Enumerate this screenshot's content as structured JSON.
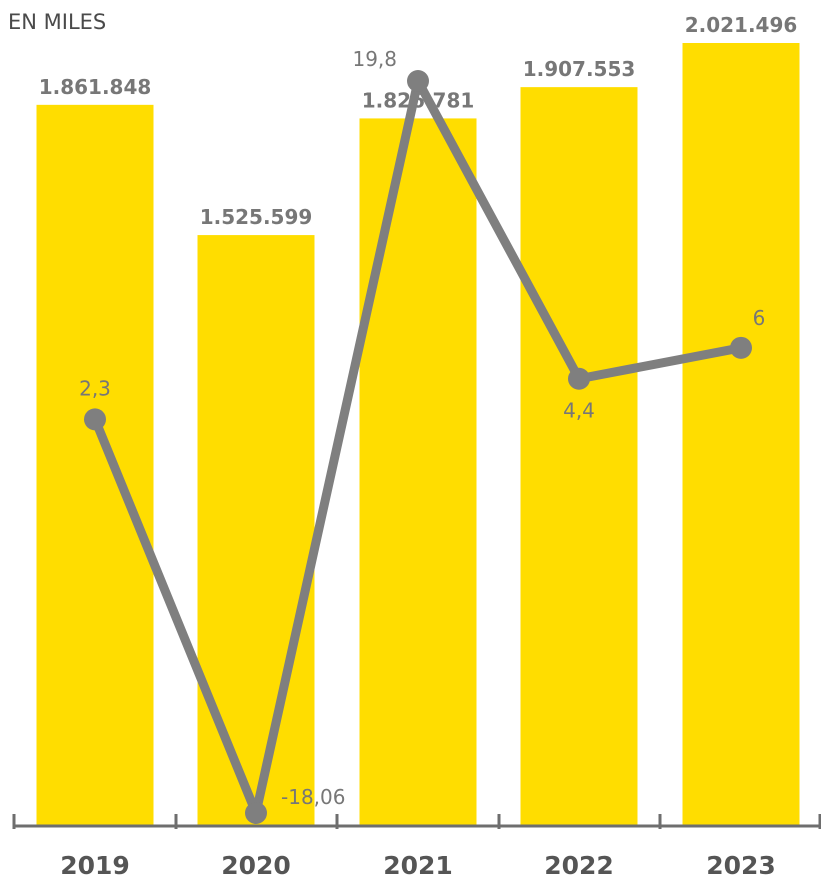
{
  "chart_data": {
    "type": "bar",
    "unit_label": "EN MILES",
    "categories": [
      "2019",
      "2020",
      "2021",
      "2022",
      "2023"
    ],
    "series": [
      {
        "type": "bar",
        "values": [
          1861848,
          1525599,
          1826781,
          1907553,
          2021496
        ],
        "value_labels": [
          "1.861.848",
          "1.525.599",
          "1.826.781",
          "1.907.553",
          "2.021.496"
        ],
        "color": "#FFDD00"
      },
      {
        "type": "line",
        "values": [
          2.3,
          -18.06,
          19.8,
          4.4,
          6
        ],
        "value_labels": [
          "2,3",
          "-18,06",
          "19,8",
          "4,4",
          "6"
        ],
        "color": "#7F7F7F"
      }
    ],
    "axis_color": "#6E6E6E"
  }
}
